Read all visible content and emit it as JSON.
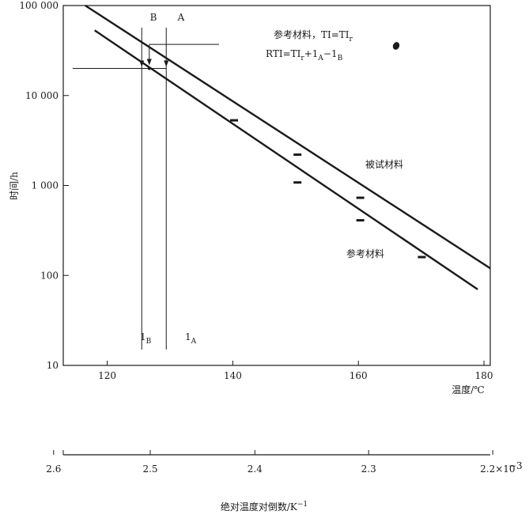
{
  "chart_data": {
    "type": "line",
    "title": "",
    "xlabel": "温度/℃",
    "ylabel": "时间/h",
    "second_xlabel": "绝对温度对倒数/K",
    "second_xlabel_sup": "−1",
    "x_scale": "linear",
    "y_scale": "log",
    "xlim": [
      113,
      181
    ],
    "ylim": [
      10,
      100000
    ],
    "x_ticks": [
      120,
      140,
      160,
      180
    ],
    "x_tick_labels": [
      "120",
      "140",
      "160",
      "180"
    ],
    "y_ticks": [
      10,
      100,
      1000,
      10000,
      100000
    ],
    "y_tick_labels": [
      "10",
      "100",
      "1 000",
      "10 000",
      "100 000"
    ],
    "second_axis_ticks": [
      2.6,
      2.5,
      2.4,
      2.3,
      2.2
    ],
    "second_axis_tick_labels": [
      "2.6",
      "2.5",
      "2.4",
      "2.3",
      "2.2×10"
    ],
    "second_axis_exponent": "−3",
    "series": [
      {
        "name": "被试材料",
        "line": {
          "x": [
            116.5,
            181
          ],
          "y": [
            100000,
            120
          ]
        },
        "markers": {
          "x": [
            140.2,
            150.3,
            160.3
          ],
          "y": [
            5300,
            2200,
            730
          ]
        }
      },
      {
        "name": "参考材料",
        "line": {
          "x": [
            118,
            179
          ],
          "y": [
            53000,
            70
          ]
        },
        "markers": {
          "x": [
            150.3,
            160.3,
            170.1
          ],
          "y": [
            1080,
            410,
            160
          ]
        }
      }
    ],
    "guide_lines": {
      "vertical_A_x": 129.4,
      "vertical_B_x": 125.5,
      "horizontal_y": 20000,
      "upper_bracket_y": 37000,
      "upper_bracket_start_x": 126.7,
      "upper_bracket_end_x": 137.8,
      "horizontal_start_x": 114.5,
      "arrow_target_y": 20000,
      "arrow_upper_y": 28000,
      "marker_x": 126.7,
      "marker_y": 20000,
      "line_bottom_y": 15
    },
    "annotations": {
      "label_A": "A",
      "label_B": "B",
      "lA_main": "1",
      "lA_sub": "A",
      "lB_main": "1",
      "lB_sub": "B",
      "ref_line1_main": "参考材料，TI=TI",
      "ref_line1_sub": "r",
      "rti_p1": "RTI=TI",
      "rti_s1": "r",
      "rti_p2": "+1",
      "rti_s2": "A",
      "rti_p3": "−1",
      "rti_s3": "B",
      "series_label_test": "被试材料",
      "series_label_ref": "参考材料"
    }
  }
}
